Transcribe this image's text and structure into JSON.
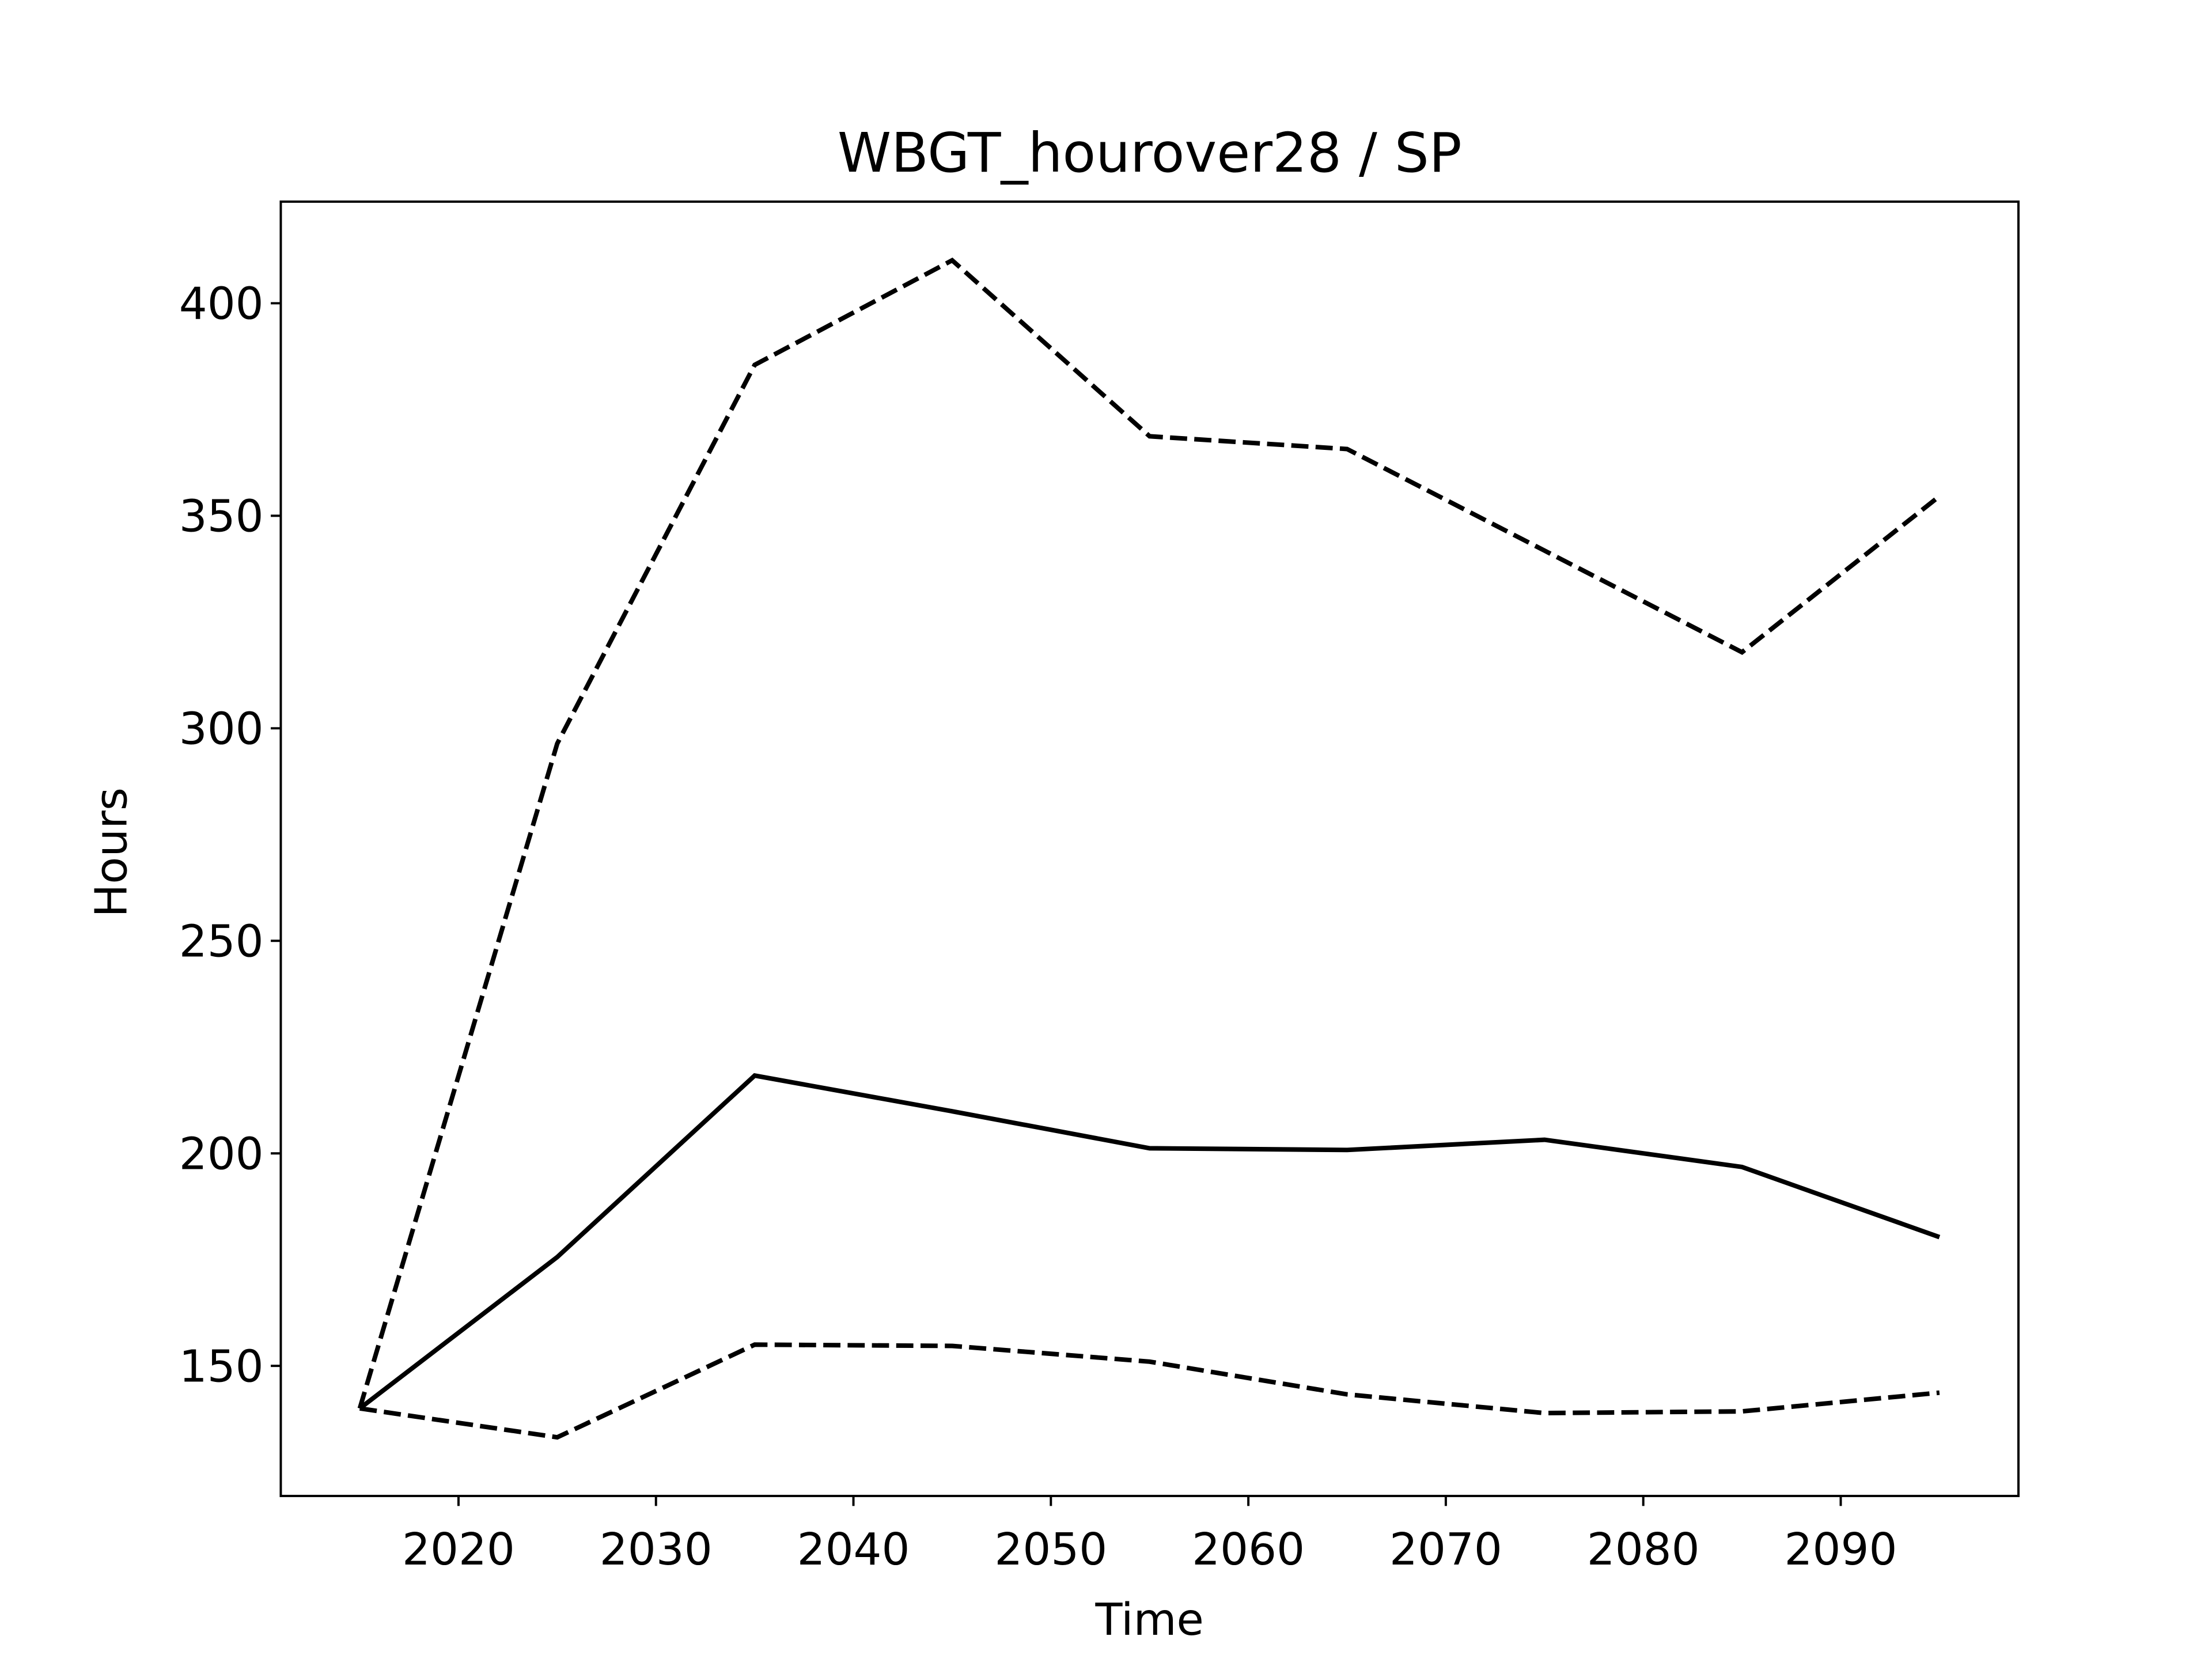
{
  "chart_data": {
    "type": "line",
    "title": "WBGT_hourover28 / SP",
    "x_label": "Time",
    "y_label": "Hours",
    "x": [
      2015,
      2025,
      2035,
      2045,
      2055,
      2065,
      2075,
      2085,
      2095
    ],
    "series": [
      {
        "color": "#000000",
        "linestyle": "solid",
        "values": [
          140,
          175.6,
          218.3,
          209.9,
          201.2,
          200.8,
          203.2,
          196.8,
          180.3
        ]
      },
      {
        "color": "#000000",
        "linestyle": "dashed",
        "values": [
          140,
          296.4,
          385.5,
          410.1,
          368.7,
          365.7,
          341.8,
          317.9,
          354.6
        ]
      },
      {
        "color": "#000000",
        "linestyle": "dashed",
        "values": [
          140,
          133.2,
          155.0,
          154.7,
          151.0,
          143.3,
          138.9,
          139.3,
          143.7
        ]
      }
    ],
    "xlim": [
      2011,
      2099
    ],
    "xticks": [
      2020,
      2030,
      2040,
      2050,
      2060,
      2070,
      2080,
      2090
    ],
    "ylim": [
      119.4,
      423.9
    ],
    "yticks": [
      150,
      200,
      250,
      300,
      350,
      400
    ],
    "grid": false
  }
}
